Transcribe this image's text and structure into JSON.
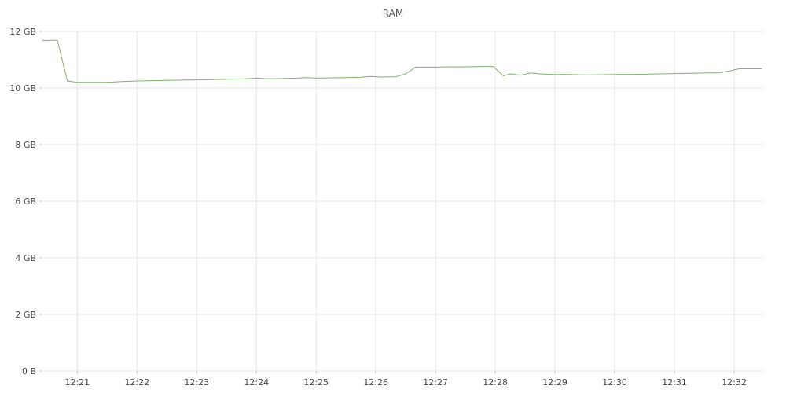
{
  "chart_data": {
    "type": "line",
    "title": "RAM",
    "xlabel": "",
    "ylabel": "",
    "grid": true,
    "line_color": "#7eb26d",
    "x_ticks": [
      "12:21",
      "12:22",
      "12:23",
      "12:24",
      "12:25",
      "12:26",
      "12:27",
      "12:28",
      "12:29",
      "12:30",
      "12:31",
      "12:32"
    ],
    "y_ticks": [
      "0 B",
      "2 GB",
      "4 GB",
      "6 GB",
      "8 GB",
      "10 GB",
      "12 GB"
    ],
    "xlim": [
      "12:20:25",
      "12:32:30"
    ],
    "ylim": [
      0,
      12
    ],
    "y_unit": "GB",
    "series": [
      {
        "x": [
          "12:20:25",
          "12:20:35",
          "12:20:40",
          "12:20:50",
          "12:21:00",
          "12:21:15",
          "12:21:30",
          "12:21:45",
          "12:22:00",
          "12:22:15",
          "12:22:30",
          "12:22:45",
          "12:23:00",
          "12:23:15",
          "12:23:30",
          "12:23:45",
          "12:24:00",
          "12:24:10",
          "12:24:20",
          "12:24:30",
          "12:24:40",
          "12:24:50",
          "12:25:00",
          "12:25:15",
          "12:25:30",
          "12:25:45",
          "12:25:55",
          "12:26:05",
          "12:26:20",
          "12:26:30",
          "12:26:40",
          "12:26:50",
          "12:27:00",
          "12:27:15",
          "12:27:30",
          "12:27:45",
          "12:27:58",
          "12:28:08",
          "12:28:15",
          "12:28:25",
          "12:28:35",
          "12:28:45",
          "12:28:55",
          "12:29:05",
          "12:29:15",
          "12:29:30",
          "12:29:45",
          "12:30:00",
          "12:30:15",
          "12:30:30",
          "12:30:45",
          "12:31:00",
          "12:31:15",
          "12:31:30",
          "12:31:45",
          "12:31:55",
          "12:32:05",
          "12:32:15",
          "12:32:28"
        ],
        "values": [
          11.68,
          11.69,
          11.69,
          10.25,
          10.2,
          10.2,
          10.2,
          10.23,
          10.25,
          10.26,
          10.27,
          10.28,
          10.29,
          10.3,
          10.31,
          10.32,
          10.35,
          10.33,
          10.33,
          10.34,
          10.35,
          10.37,
          10.35,
          10.36,
          10.37,
          10.38,
          10.41,
          10.39,
          10.4,
          10.5,
          10.74,
          10.74,
          10.74,
          10.75,
          10.75,
          10.76,
          10.76,
          10.43,
          10.5,
          10.45,
          10.53,
          10.5,
          10.48,
          10.48,
          10.48,
          10.46,
          10.47,
          10.48,
          10.48,
          10.49,
          10.5,
          10.51,
          10.52,
          10.53,
          10.54,
          10.6,
          10.68,
          10.68,
          10.68
        ]
      }
    ]
  }
}
